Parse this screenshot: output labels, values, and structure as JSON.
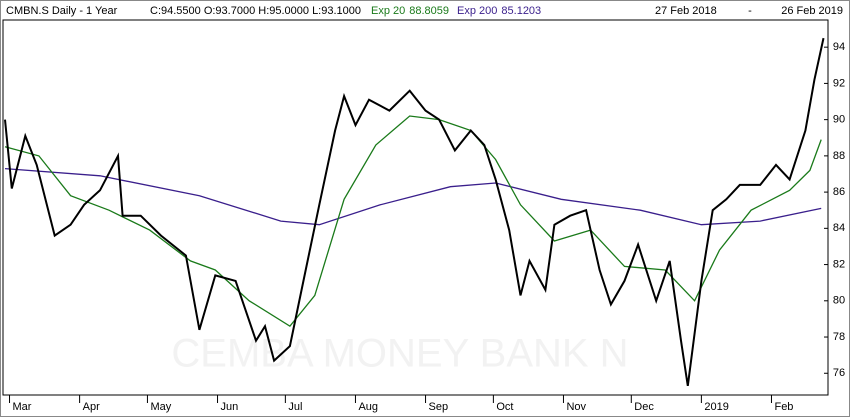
{
  "chart_data": {
    "type": "line",
    "title": "CMBN.S Daily -  1 Year",
    "ohlc": "C:94.5500 O:93.7000 H:95.0000 L:93.1000",
    "date_from": "27 Feb 2018",
    "date_sep": "-",
    "date_to": "26 Feb 2019",
    "watermark": "CEMBA MONEY BANK N",
    "xlim": [
      0,
      364
    ],
    "ylim": [
      74.8,
      95.5
    ],
    "yticks": [
      76,
      78,
      80,
      82,
      84,
      86,
      88,
      90,
      92,
      94
    ],
    "xticks": [
      {
        "value": 2,
        "label": "Mar"
      },
      {
        "value": 33,
        "label": "Apr"
      },
      {
        "value": 63,
        "label": "May"
      },
      {
        "value": 94,
        "label": "Jun"
      },
      {
        "value": 124,
        "label": "Jul"
      },
      {
        "value": 155,
        "label": "Aug"
      },
      {
        "value": 186,
        "label": "Sep"
      },
      {
        "value": 216,
        "label": "Oct"
      },
      {
        "value": 247,
        "label": "Nov"
      },
      {
        "value": 277,
        "label": "Dec"
      },
      {
        "value": 308,
        "label": "2019"
      },
      {
        "value": 339,
        "label": "Feb"
      }
    ],
    "series": [
      {
        "color": "#000000",
        "x": [
          0,
          3,
          9,
          14,
          22,
          29,
          35,
          42,
          50,
          52,
          60,
          69,
          80,
          86,
          93,
          102,
          111,
          115,
          119,
          126,
          133,
          139,
          146,
          150,
          155,
          161,
          170,
          179,
          186,
          192,
          199,
          206,
          212,
          217,
          223,
          228,
          232,
          239,
          243,
          250,
          257,
          263,
          268,
          274,
          280,
          288,
          294,
          299,
          302,
          308,
          313,
          319,
          325,
          334,
          341,
          347,
          354,
          358,
          362
        ],
        "values": [
          90.0,
          86.2,
          89.1,
          87.5,
          83.6,
          84.2,
          85.3,
          86.1,
          88.0,
          84.7,
          84.7,
          83.6,
          82.5,
          78.4,
          81.4,
          81.1,
          77.8,
          78.6,
          76.7,
          77.5,
          81.7,
          85.3,
          89.4,
          91.3,
          89.7,
          91.1,
          90.5,
          91.6,
          90.5,
          90.0,
          88.3,
          89.4,
          88.6,
          86.7,
          83.9,
          80.3,
          82.2,
          80.6,
          84.2,
          84.7,
          85.0,
          81.7,
          79.8,
          81.1,
          83.1,
          80.0,
          82.2,
          77.8,
          75.3,
          81.1,
          85.0,
          85.6,
          86.4,
          86.4,
          87.5,
          86.7,
          89.4,
          92.2,
          94.5
        ]
      },
      {
        "name": "Exp 20",
        "last": 88.8059,
        "color": "#1a7a1a",
        "x": [
          0,
          15,
          29,
          46,
          64,
          82,
          93,
          108,
          126,
          137,
          150,
          164,
          179,
          192,
          206,
          217,
          228,
          243,
          259,
          274,
          292,
          305,
          316,
          330,
          347,
          356,
          361
        ],
        "values": [
          88.5,
          88.0,
          85.8,
          85.0,
          83.9,
          82.2,
          81.7,
          80.0,
          78.6,
          80.3,
          85.6,
          88.6,
          90.2,
          90.0,
          89.4,
          87.8,
          85.3,
          83.3,
          83.9,
          81.9,
          81.7,
          80.0,
          82.8,
          85.0,
          86.1,
          87.2,
          88.9
        ]
      },
      {
        "name": "Exp 200",
        "last": 85.1203,
        "color": "#3a1f8c",
        "x": [
          0,
          42,
          86,
          122,
          139,
          166,
          197,
          217,
          246,
          281,
          308,
          334,
          361
        ],
        "values": [
          87.3,
          86.9,
          85.8,
          84.4,
          84.2,
          85.3,
          86.3,
          86.5,
          85.6,
          85.0,
          84.2,
          84.4,
          85.1
        ]
      }
    ]
  }
}
